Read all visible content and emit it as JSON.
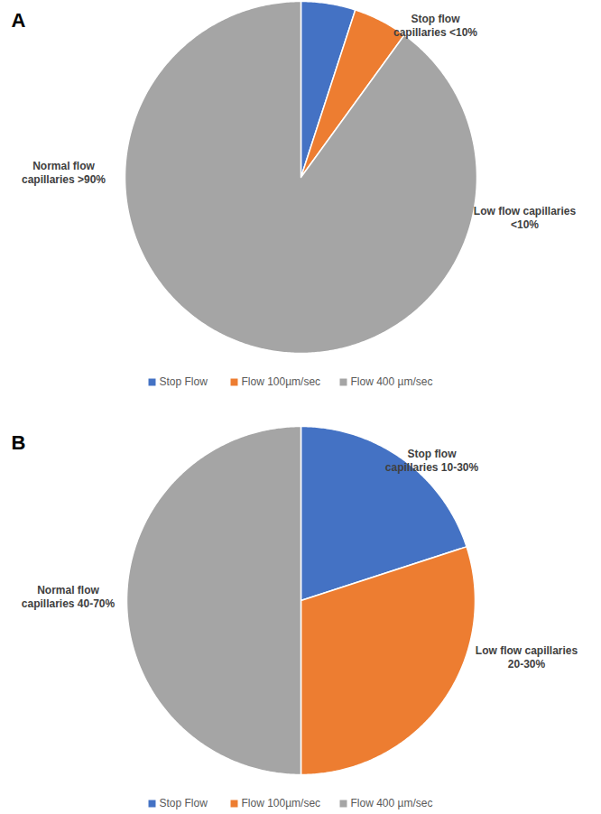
{
  "chart_data": [
    {
      "type": "pie",
      "title": "A",
      "categories": [
        "Stop Flow",
        "Flow 100µm/sec",
        "Flow 400 µm/sec"
      ],
      "values": [
        5,
        5,
        90
      ],
      "labels": [
        "Stop flow\ncapillaries <10%",
        "Low flow capillaries\n<10%",
        "Normal flow\ncapillaries >90%"
      ],
      "colors": [
        "#4472c4",
        "#ed7d31",
        "#a5a5a5"
      ],
      "legend": "bottom"
    },
    {
      "type": "pie",
      "title": "B",
      "categories": [
        "Stop Flow",
        "Flow 100µm/sec",
        "Flow 400 µm/sec"
      ],
      "values": [
        20,
        30,
        50
      ],
      "labels": [
        "Stop flow\ncapillaries 10-30%",
        "Low flow capillaries\n20-30%",
        "Normal flow\ncapillaries 40-70%"
      ],
      "colors": [
        "#4472c4",
        "#ed7d31",
        "#a5a5a5"
      ],
      "legend": "bottom"
    }
  ]
}
